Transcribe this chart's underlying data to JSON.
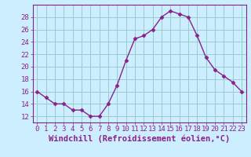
{
  "x": [
    0,
    1,
    2,
    3,
    4,
    5,
    6,
    7,
    8,
    9,
    10,
    11,
    12,
    13,
    14,
    15,
    16,
    17,
    18,
    19,
    20,
    21,
    22,
    23
  ],
  "y": [
    16,
    15,
    14,
    14,
    13,
    13,
    12,
    12,
    14,
    17,
    21,
    24.5,
    25,
    26,
    28,
    29,
    28.5,
    28,
    25,
    21.5,
    19.5,
    18.5,
    17.5,
    16
  ],
  "line_color": "#882288",
  "marker": "D",
  "marker_size": 2.5,
  "background_color": "#cceeff",
  "grid_color": "#99cccc",
  "xlabel": "Windchill (Refroidissement éolien,°C)",
  "xlabel_fontsize": 7.5,
  "ylim": [
    11,
    30
  ],
  "xlim": [
    -0.5,
    23.5
  ],
  "yticks": [
    12,
    14,
    16,
    18,
    20,
    22,
    24,
    26,
    28
  ],
  "xticks": [
    0,
    1,
    2,
    3,
    4,
    5,
    6,
    7,
    8,
    9,
    10,
    11,
    12,
    13,
    14,
    15,
    16,
    17,
    18,
    19,
    20,
    21,
    22,
    23
  ],
  "tick_label_fontsize": 6.5,
  "tick_color": "#882288",
  "spine_color": "#882288",
  "linewidth": 1.0
}
